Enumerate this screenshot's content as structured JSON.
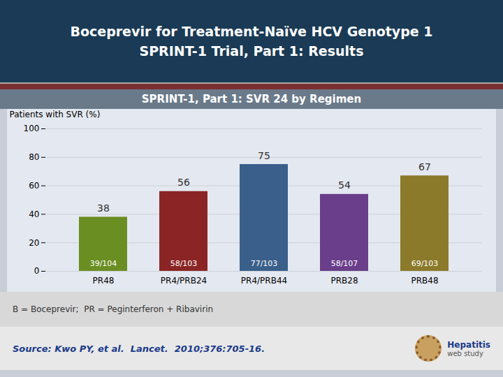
{
  "chart_data": {
    "type": "bar",
    "title": "Boceprevir for Treatment-Naïve HCV Genotype 1\nSPRINT-1 Trial, Part 1: Results",
    "subtitle": "SPRINT-1, Part 1: SVR 24 by Regimen",
    "categories": [
      "PR48",
      "PR4/PRB24",
      "PR4/PRB44",
      "PRB28",
      "PRB48"
    ],
    "values": [
      38,
      56,
      75,
      54,
      67
    ],
    "fractions": [
      "39/104",
      "58/103",
      "77/103",
      "58/107",
      "69/103"
    ],
    "colors": [
      "#6B8E23",
      "#8B2525",
      "#3A5F8A",
      "#6A3E8A",
      "#8B7A2A"
    ],
    "ylabel": "Patients with SVR (%)",
    "ylim": [
      0,
      100
    ],
    "yticks": [
      0,
      20,
      40,
      60,
      80,
      100
    ],
    "grid": true,
    "data_labels": true,
    "annotations": [
      "B = Boceprevir;  PR = Peginterferon + Ribavirin",
      "Source: Kwo PY, et al.  Lancet.  2010;376:705-16.",
      "Hepatitis",
      "web study"
    ]
  }
}
